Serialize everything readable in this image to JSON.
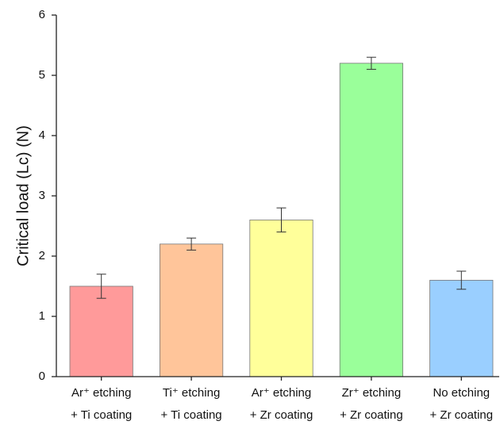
{
  "chart_data": {
    "type": "bar",
    "y_label": "Critical load (Lc) (N)",
    "categories": [
      [
        "Ar⁺ etching",
        "+ Ti coating"
      ],
      [
        "Ti⁺ etching",
        "+ Ti coating"
      ],
      [
        "Ar⁺ etching",
        "+ Zr coating"
      ],
      [
        "Zr⁺ etching",
        "+ Zr coating"
      ],
      [
        "No etching",
        "+ Zr coating"
      ]
    ],
    "values": [
      1.5,
      2.2,
      2.6,
      5.2,
      1.6
    ],
    "errors": [
      0.2,
      0.1,
      0.2,
      0.1,
      0.15
    ],
    "colors": [
      "#ff9a9a",
      "#ffc59a",
      "#ffff9a",
      "#9aff9a",
      "#9acfff"
    ],
    "ylim": [
      0,
      6
    ],
    "yticks": [
      0,
      1,
      2,
      3,
      4,
      5,
      6
    ],
    "grid": false
  }
}
